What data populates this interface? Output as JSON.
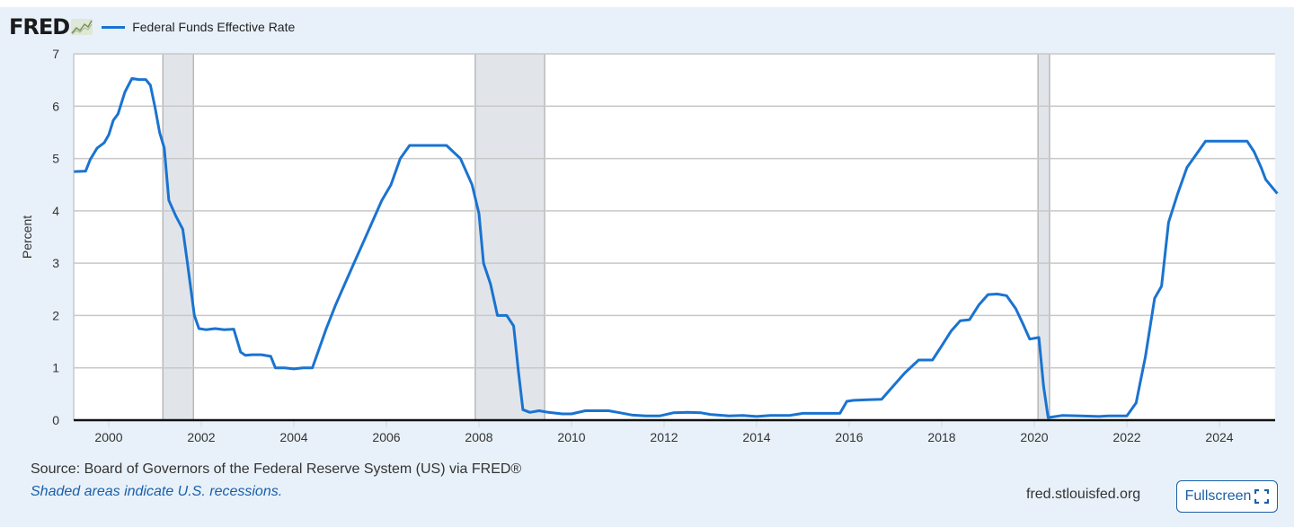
{
  "header": {
    "logo_text": "FRED",
    "logo_icon": "mini-line-chart-icon",
    "legend_label": "Federal Funds Effective Rate",
    "series_color": "#1a73d0"
  },
  "footer": {
    "source": "Source: Board of Governors of the Federal Reserve System (US) via FRED®",
    "note": "Shaded areas indicate U.S. recessions.",
    "site": "fred.stlouisfed.org",
    "fullscreen_label": "Fullscreen",
    "fullscreen_icon": "expand-icon"
  },
  "chart_data": {
    "type": "line",
    "title": "Federal Funds Effective Rate",
    "xlabel": "",
    "ylabel": "Percent",
    "ylim": [
      0,
      7
    ],
    "xlim": [
      1999.25,
      2025.25
    ],
    "y_ticks": [
      "0",
      "1",
      "2",
      "3",
      "4",
      "5",
      "6",
      "7"
    ],
    "x_ticks": [
      "2000",
      "2002",
      "2004",
      "2006",
      "2008",
      "2010",
      "2012",
      "2014",
      "2016",
      "2018",
      "2020",
      "2022",
      "2024"
    ],
    "grid": true,
    "legend_position": "top-left",
    "recessions": [
      [
        2001.17,
        2001.83
      ],
      [
        2007.92,
        2009.42
      ],
      [
        2020.08,
        2020.33
      ]
    ],
    "series": [
      {
        "name": "Federal Funds Effective Rate",
        "color": "#1a73d0",
        "x": [
          1999.25,
          1999.5,
          1999.6,
          1999.75,
          1999.9,
          2000.0,
          2000.1,
          2000.2,
          2000.35,
          2000.5,
          2000.65,
          2000.8,
          2000.9,
          2001.0,
          2001.1,
          2001.2,
          2001.3,
          2001.45,
          2001.6,
          2001.7,
          2001.85,
          2001.95,
          2002.1,
          2002.3,
          2002.5,
          2002.7,
          2002.85,
          2002.95,
          2003.1,
          2003.3,
          2003.5,
          2003.6,
          2003.8,
          2004.0,
          2004.2,
          2004.4,
          2004.5,
          2004.7,
          2004.9,
          2005.1,
          2005.3,
          2005.5,
          2005.7,
          2005.9,
          2006.1,
          2006.3,
          2006.5,
          2006.7,
          2007.0,
          2007.3,
          2007.6,
          2007.7,
          2007.85,
          2008.0,
          2008.1,
          2008.25,
          2008.4,
          2008.6,
          2008.75,
          2008.85,
          2008.95,
          2009.1,
          2009.3,
          2009.5,
          2009.8,
          2010.0,
          2010.3,
          2010.5,
          2010.8,
          2011.0,
          2011.3,
          2011.6,
          2011.9,
          2012.2,
          2012.5,
          2012.8,
          2013.0,
          2013.4,
          2013.7,
          2014.0,
          2014.3,
          2014.7,
          2015.0,
          2015.4,
          2015.8,
          2015.95,
          2016.1,
          2016.4,
          2016.7,
          2016.95,
          2017.2,
          2017.5,
          2017.8,
          2018.0,
          2018.2,
          2018.4,
          2018.6,
          2018.8,
          2019.0,
          2019.2,
          2019.4,
          2019.6,
          2019.75,
          2019.9,
          2020.1,
          2020.2,
          2020.3,
          2020.6,
          2021.0,
          2021.4,
          2021.6,
          2022.0,
          2022.2,
          2022.4,
          2022.6,
          2022.75,
          2022.9,
          2023.1,
          2023.3,
          2023.5,
          2023.7,
          2024.0,
          2024.3,
          2024.6,
          2024.75,
          2024.9,
          2025.0,
          2025.25
        ],
        "values": [
          4.75,
          4.76,
          4.98,
          5.2,
          5.3,
          5.45,
          5.73,
          5.85,
          6.27,
          6.53,
          6.51,
          6.51,
          6.4,
          5.98,
          5.5,
          5.2,
          4.2,
          3.9,
          3.65,
          3.0,
          2.0,
          1.75,
          1.73,
          1.75,
          1.73,
          1.74,
          1.3,
          1.24,
          1.25,
          1.25,
          1.22,
          1.0,
          1.0,
          0.98,
          1.0,
          1.0,
          1.25,
          1.75,
          2.2,
          2.6,
          3.0,
          3.4,
          3.8,
          4.2,
          4.5,
          5.0,
          5.25,
          5.25,
          5.25,
          5.25,
          5.0,
          4.8,
          4.5,
          3.95,
          3.0,
          2.6,
          2.0,
          2.0,
          1.8,
          0.95,
          0.2,
          0.15,
          0.18,
          0.15,
          0.12,
          0.12,
          0.18,
          0.18,
          0.18,
          0.15,
          0.1,
          0.08,
          0.08,
          0.14,
          0.15,
          0.14,
          0.11,
          0.08,
          0.09,
          0.07,
          0.09,
          0.09,
          0.13,
          0.13,
          0.13,
          0.36,
          0.38,
          0.39,
          0.4,
          0.65,
          0.9,
          1.15,
          1.15,
          1.42,
          1.7,
          1.9,
          1.92,
          2.2,
          2.4,
          2.41,
          2.38,
          2.13,
          1.85,
          1.55,
          1.58,
          0.65,
          0.05,
          0.09,
          0.08,
          0.07,
          0.08,
          0.08,
          0.33,
          1.21,
          2.33,
          2.56,
          3.78,
          4.33,
          4.83,
          5.08,
          5.33,
          5.33,
          5.33,
          5.33,
          5.13,
          4.83,
          4.6,
          4.33
        ]
      }
    ]
  }
}
